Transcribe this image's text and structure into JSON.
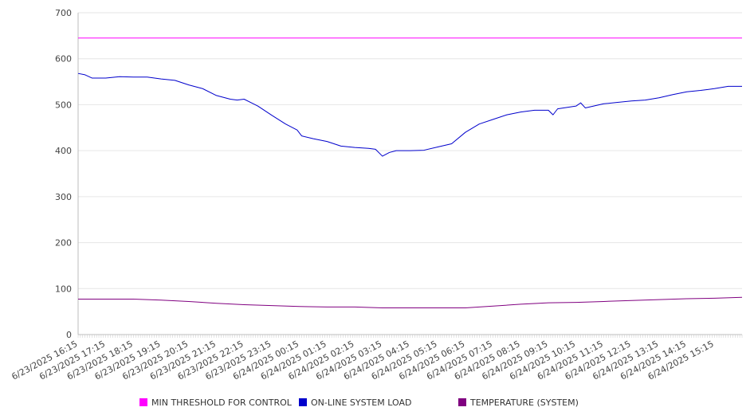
{
  "chart_data": {
    "type": "line",
    "title": "",
    "xlabel": "",
    "ylabel": "",
    "ylim": [
      0,
      700
    ],
    "yticks": [
      0,
      100,
      200,
      300,
      400,
      500,
      600,
      700
    ],
    "grid": "horizontal",
    "legend_position": "bottom",
    "x_tick_labels": [
      "6/23/2025 16:15",
      "6/23/2025 17:15",
      "6/23/2025 18:15",
      "6/23/2025 19:15",
      "6/23/2025 20:15",
      "6/23/2025 21:15",
      "6/23/2025 22:15",
      "6/23/2025 23:15",
      "6/24/2025 00:15",
      "6/24/2025 01:15",
      "6/24/2025 02:15",
      "6/24/2025 03:15",
      "6/24/2025 04:15",
      "6/24/2025 05:15",
      "6/24/2025 06:15",
      "6/24/2025 07:15",
      "6/24/2025 08:15",
      "6/24/2025 09:15",
      "6/24/2025 10:15",
      "6/24/2025 11:15",
      "6/24/2025 12:15",
      "6/24/2025 13:15",
      "6/24/2025 14:15",
      "6/24/2025 15:15"
    ],
    "x_start": "6/23/2025 16:15",
    "x_end": "6/24/2025 16:15",
    "series": [
      {
        "name": "MIN THRESHOLD FOR CONTROL",
        "color": "#ff00ff",
        "x": [
          "6/23/2025 16:15",
          "6/24/2025 16:15"
        ],
        "y": [
          645,
          645
        ]
      },
      {
        "name": "ON-LINE SYSTEM LOAD",
        "color": "#0000cc",
        "x": [
          "6/23/2025 16:15",
          "6/23/2025 16:30",
          "6/23/2025 16:45",
          "6/23/2025 17:15",
          "6/23/2025 17:45",
          "6/23/2025 18:15",
          "6/23/2025 18:45",
          "6/23/2025 19:15",
          "6/23/2025 19:45",
          "6/23/2025 20:15",
          "6/23/2025 20:45",
          "6/23/2025 21:15",
          "6/23/2025 21:45",
          "6/23/2025 22:00",
          "6/23/2025 22:15",
          "6/23/2025 22:45",
          "6/23/2025 23:15",
          "6/23/2025 23:45",
          "6/24/2025 00:10",
          "6/24/2025 00:20",
          "6/24/2025 00:45",
          "6/24/2025 01:15",
          "6/24/2025 01:45",
          "6/24/2025 02:15",
          "6/24/2025 02:45",
          "6/24/2025 03:00",
          "6/24/2025 03:15",
          "6/24/2025 03:30",
          "6/24/2025 03:45",
          "6/24/2025 04:15",
          "6/24/2025 04:45",
          "6/24/2025 05:15",
          "6/24/2025 05:45",
          "6/24/2025 06:15",
          "6/24/2025 06:45",
          "6/24/2025 07:15",
          "6/24/2025 07:45",
          "6/24/2025 08:15",
          "6/24/2025 08:45",
          "6/24/2025 09:15",
          "6/24/2025 09:25",
          "6/24/2025 09:35",
          "6/24/2025 10:15",
          "6/24/2025 10:25",
          "6/24/2025 10:35",
          "6/24/2025 11:15",
          "6/24/2025 11:45",
          "6/24/2025 12:15",
          "6/24/2025 12:45",
          "6/24/2025 13:15",
          "6/24/2025 13:45",
          "6/24/2025 14:15",
          "6/24/2025 14:45",
          "6/24/2025 15:15",
          "6/24/2025 15:45",
          "6/24/2025 16:15"
        ],
        "y": [
          568,
          565,
          558,
          558,
          561,
          560,
          560,
          556,
          553,
          543,
          535,
          520,
          512,
          510,
          512,
          497,
          477,
          458,
          445,
          432,
          426,
          420,
          410,
          407,
          405,
          403,
          388,
          396,
          400,
          400,
          401,
          408,
          415,
          440,
          458,
          468,
          478,
          484,
          488,
          488,
          478,
          491,
          497,
          504,
          493,
          502,
          505,
          508,
          510,
          515,
          522,
          528,
          531,
          535,
          540,
          540
        ]
      },
      {
        "name": "TEMPERATURE (SYSTEM)",
        "color": "#800080",
        "x": [
          "6/23/2025 16:15",
          "6/23/2025 18:15",
          "6/23/2025 19:15",
          "6/23/2025 20:15",
          "6/23/2025 21:15",
          "6/23/2025 22:15",
          "6/23/2025 23:15",
          "6/24/2025 00:15",
          "6/24/2025 01:15",
          "6/24/2025 02:15",
          "6/24/2025 03:15",
          "6/24/2025 04:15",
          "6/24/2025 05:15",
          "6/24/2025 06:15",
          "6/24/2025 07:15",
          "6/24/2025 08:15",
          "6/24/2025 09:15",
          "6/24/2025 10:15",
          "6/24/2025 11:15",
          "6/24/2025 12:15",
          "6/24/2025 13:15",
          "6/24/2025 14:15",
          "6/24/2025 15:15",
          "6/24/2025 16:15"
        ],
        "y": [
          77,
          77,
          75,
          72,
          68,
          65,
          63,
          61,
          60,
          60,
          58,
          58,
          58,
          58,
          62,
          66,
          69,
          70,
          72,
          74,
          76,
          78,
          79,
          81
        ]
      }
    ]
  }
}
